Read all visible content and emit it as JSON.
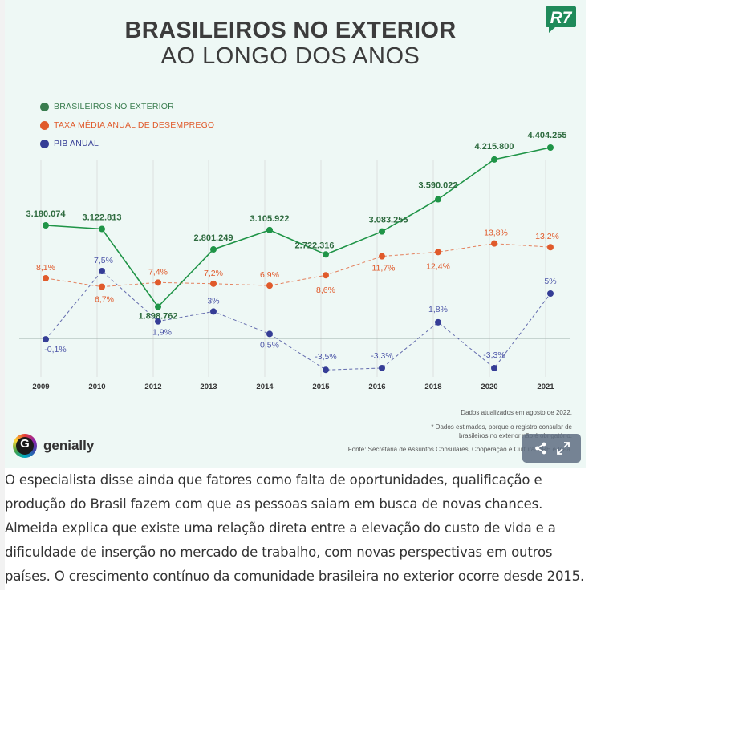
{
  "infographic": {
    "title_line1": "BRASILEIROS NO EXTERIOR",
    "title_line2": "AO LONGO DOS ANOS",
    "brand_logo": "R7",
    "legend": [
      {
        "label": "BRASILEIROS NO EXTERIOR",
        "color": "#3a7d4f"
      },
      {
        "label": "TAXA MÉDIA ANUAL DE DESEMPREGO",
        "color": "#e05a2b"
      },
      {
        "label": "PIB ANUAL",
        "color": "#353d96"
      }
    ],
    "notes": {
      "updated": "Dados atualizados em agosto de 2022.",
      "estimated_1": "* Dados estimados, porque o registro consular de",
      "estimated_2": "brasileiros no exterior não é obrigatório.",
      "source": "Fonte: Secretaria de Assuntos Consulares, Cooperação e Cultura/MRE e Ipea."
    },
    "footer_brand": "genially",
    "footer_brand_letter": "G"
  },
  "chart_data": {
    "type": "line",
    "categories": [
      "2009",
      "2010",
      "2012",
      "2013",
      "2014",
      "2015",
      "2016",
      "2018",
      "2020",
      "2021"
    ],
    "series": [
      {
        "name": "BRASILEIROS NO EXTERIOR",
        "color": "#1f9447",
        "style": "solid",
        "values": [
          3180074,
          3122813,
          1898762,
          2801249,
          3105922,
          2722316,
          3083255,
          3590022,
          4215800,
          4404255
        ],
        "labels": [
          "3.180.074",
          "3.122.813",
          "1.898.762",
          "2.801.249",
          "3.105.922",
          "2.722.316",
          "3.083.255",
          "3.590.022",
          "4.215.800",
          "4.404.255"
        ]
      },
      {
        "name": "TAXA MÉDIA ANUAL DE DESEMPREGO",
        "color": "#e05a2b",
        "style": "dashed",
        "values": [
          8.1,
          6.7,
          7.4,
          7.2,
          6.9,
          8.6,
          11.7,
          12.4,
          13.8,
          13.2
        ],
        "labels": [
          "8,1%",
          "6,7%",
          "7,4%",
          "7,2%",
          "6,9%",
          "8,6%",
          "11,7%",
          "12,4%",
          "13,8%",
          "13,2%"
        ]
      },
      {
        "name": "PIB ANUAL",
        "color": "#353d96",
        "style": "dashed",
        "values": [
          -0.1,
          7.5,
          1.9,
          3.0,
          0.5,
          -3.5,
          -3.3,
          1.8,
          -3.3,
          5.0
        ],
        "labels": [
          "-0,1%",
          "7,5%",
          "1,9%",
          "3%",
          "0,5%",
          "-3,5%",
          "-3,3%",
          "1,8%",
          "-3,3%",
          "5%"
        ]
      }
    ],
    "grid": "vertical lines",
    "legend_position": "top-left"
  },
  "article": {
    "paragraph": "O especialista disse ainda que fatores como falta de oportunidades, qualificação e produção do Brasil fazem com que as pessoas saiam em busca de novas chances. Almeida explica que existe uma relação direta entre a elevação do custo de vida e a dificuldade de inserção no mercado de trabalho, com novas perspectivas em outros países. O crescimento contínuo da comunidade brasileira no exterior ocorre desde 2015."
  },
  "controls": {
    "share_icon": "share-icon",
    "fullscreen_icon": "expand-icon"
  }
}
